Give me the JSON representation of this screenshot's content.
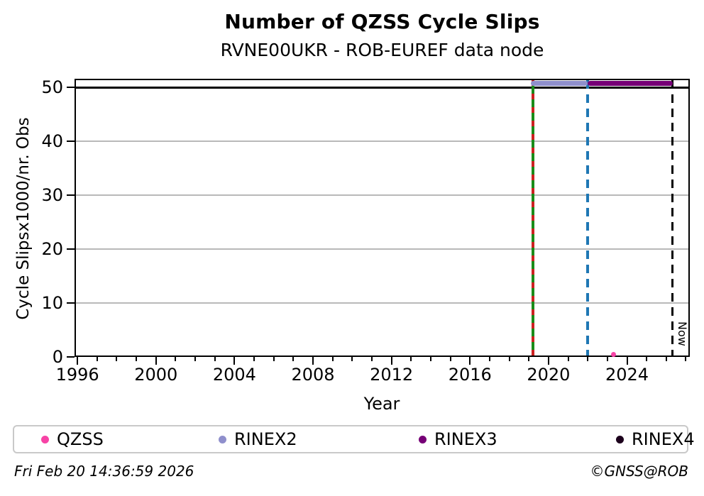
{
  "title": "Number of QZSS Cycle Slips",
  "subtitle": "RVNE00UKR - ROB-EUREF data node",
  "footer": {
    "timestamp": "Fri Feb 20 14:36:59 2026",
    "credit": "©GNSS@ROB"
  },
  "legend": {
    "items": [
      {
        "label": "QZSS",
        "color": "#f743a6"
      },
      {
        "label": "RINEX2",
        "color": "#8f8fcc"
      },
      {
        "label": "RINEX3",
        "color": "#760076"
      },
      {
        "label": "RINEX4",
        "color": "#1c001c"
      }
    ]
  },
  "chart_data": {
    "type": "line",
    "title": "Number of QZSS Cycle Slips",
    "subtitle": "RVNE00UKR - ROB-EUREF data node",
    "xlabel": "Year",
    "ylabel": "Cycle Slipsx1000/nr. Obs",
    "xlim": [
      1995.85,
      2027.2
    ],
    "ylim": [
      0,
      51.6
    ],
    "x_major_ticks": [
      1996,
      2000,
      2004,
      2008,
      2012,
      2016,
      2020,
      2024
    ],
    "x_minor_tick_step": 1,
    "y_ticks": [
      0,
      10,
      20,
      30,
      40,
      50
    ],
    "grid": "horizontal-only",
    "gridlines_y": [
      10,
      20,
      30,
      40
    ],
    "reference_lines_y": [
      {
        "y": 50,
        "color": "#000000",
        "style": "solid"
      }
    ],
    "vertical_lines": [
      {
        "x": 2019.2,
        "style": "alternating-dash",
        "colors": [
          "#cc2222",
          "#1a8c1a"
        ],
        "name": "data-start-marker"
      },
      {
        "x": 2022.0,
        "style": "dashed",
        "color": "#1f77b4",
        "name": "rinex3-transition-marker"
      },
      {
        "x": 2026.3,
        "style": "dashed",
        "color": "#000000",
        "label": "Now",
        "name": "now-marker"
      }
    ],
    "series": [
      {
        "name": "QZSS",
        "color": "#f743a6",
        "type": "points",
        "points": [
          [
            2023.3,
            0.4
          ]
        ]
      },
      {
        "name": "RINEX2",
        "color": "#8f8fcc",
        "type": "segment",
        "y": 50.8,
        "x_start": 2019.1,
        "x_end": 2022.0
      },
      {
        "name": "RINEX3",
        "color": "#760076",
        "type": "segment",
        "y": 50.8,
        "x_start": 2022.0,
        "x_end": 2026.35
      },
      {
        "name": "RINEX4",
        "color": "#1c001c",
        "type": "points",
        "points": []
      }
    ],
    "legend_position": "bottom",
    "now_label": "Now"
  }
}
